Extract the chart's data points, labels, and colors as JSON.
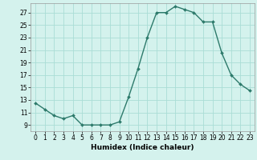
{
  "x": [
    0,
    1,
    2,
    3,
    4,
    5,
    6,
    7,
    8,
    9,
    10,
    11,
    12,
    13,
    14,
    15,
    16,
    17,
    18,
    19,
    20,
    21,
    22,
    23
  ],
  "y": [
    12.5,
    11.5,
    10.5,
    10.0,
    10.5,
    9.0,
    9.0,
    9.0,
    9.0,
    9.5,
    13.5,
    18.0,
    23.0,
    27.0,
    27.0,
    28.0,
    27.5,
    27.0,
    25.5,
    25.5,
    20.5,
    17.0,
    15.5,
    14.5
  ],
  "xlabel": "Humidex (Indice chaleur)",
  "xlim": [
    -0.5,
    23.5
  ],
  "ylim": [
    8.0,
    28.5
  ],
  "yticks": [
    9,
    11,
    13,
    15,
    17,
    19,
    21,
    23,
    25,
    27
  ],
  "xticks": [
    0,
    1,
    2,
    3,
    4,
    5,
    6,
    7,
    8,
    9,
    10,
    11,
    12,
    13,
    14,
    15,
    16,
    17,
    18,
    19,
    20,
    21,
    22,
    23
  ],
  "line_color": "#2d7a6b",
  "bg_color": "#d4f2ed",
  "grid_color": "#aaddd6",
  "label_fontsize": 6.5,
  "tick_fontsize": 5.5
}
